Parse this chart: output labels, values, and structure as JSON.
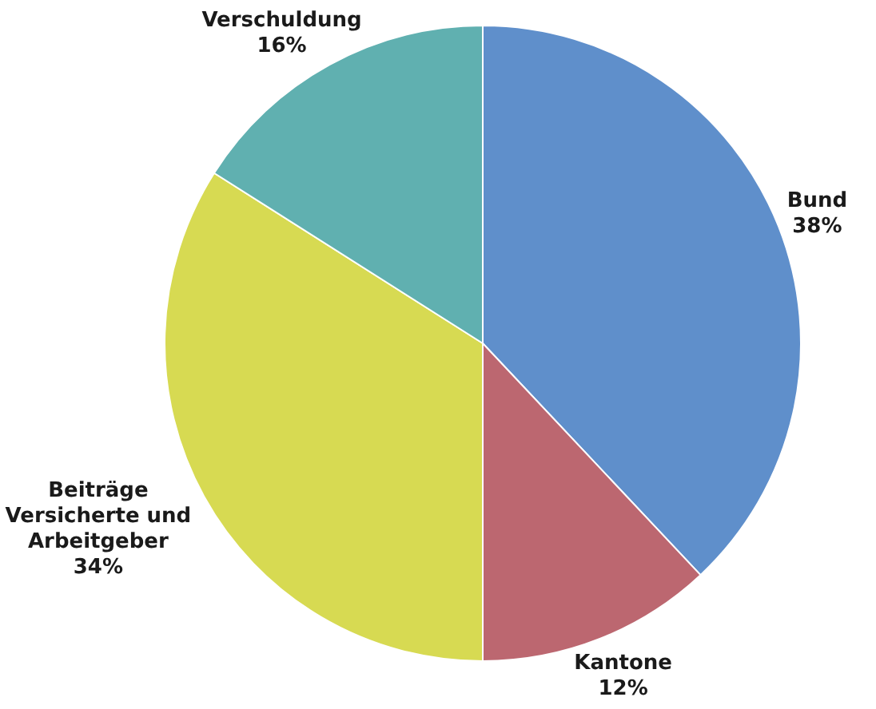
{
  "chart_data": {
    "type": "pie",
    "categories": [
      "Bund",
      "Kantone",
      "Beiträge Versicherte und Arbeitgeber",
      "Verschuldung"
    ],
    "values": [
      38,
      12,
      34,
      16
    ],
    "colors": [
      "#5f8fcb",
      "#bc6770",
      "#d7da52",
      "#60b0b0"
    ],
    "value_labels": [
      "38%",
      "12%",
      "34%",
      "16%"
    ]
  }
}
